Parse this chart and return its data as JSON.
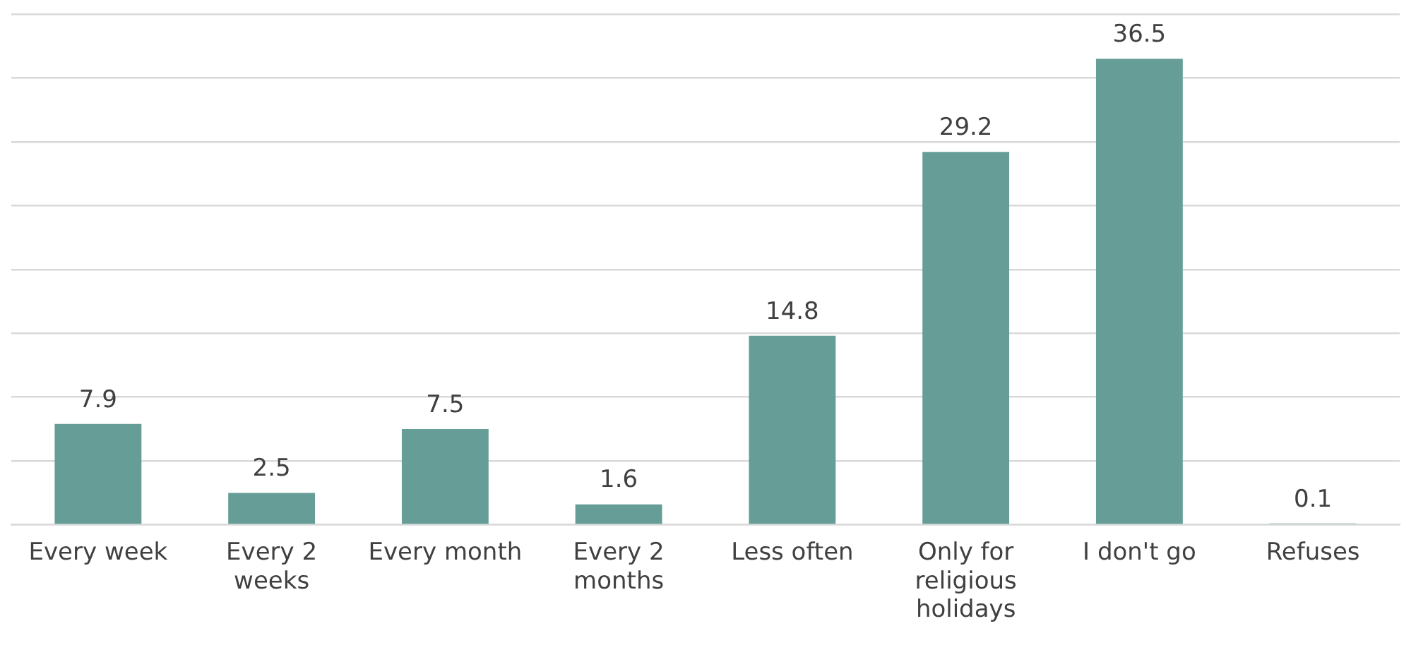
{
  "chart_data": {
    "type": "bar",
    "categories": [
      "Every week",
      "Every 2 weeks",
      "Every month",
      "Every 2 months",
      "Less often",
      "Only for religious holidays",
      "I don't go",
      "Refuses"
    ],
    "values": [
      7.9,
      2.5,
      7.5,
      1.6,
      14.8,
      29.2,
      36.5,
      0.1
    ],
    "color": "#669e97",
    "ylim": [
      0,
      40
    ],
    "yticks": [
      {
        "value": 0,
        "label": null
      },
      {
        "value": 5,
        "label": null
      },
      {
        "value": 10,
        "label": null
      },
      {
        "value": 15,
        "label": null
      },
      {
        "value": 20,
        "label": null
      },
      {
        "value": 25,
        "label": null
      },
      {
        "value": 30,
        "label": null
      },
      {
        "value": 35,
        "label": null
      },
      {
        "value": 40,
        "label": null
      }
    ],
    "tick_labels": "x",
    "grid": "y",
    "data_labels": true
  }
}
